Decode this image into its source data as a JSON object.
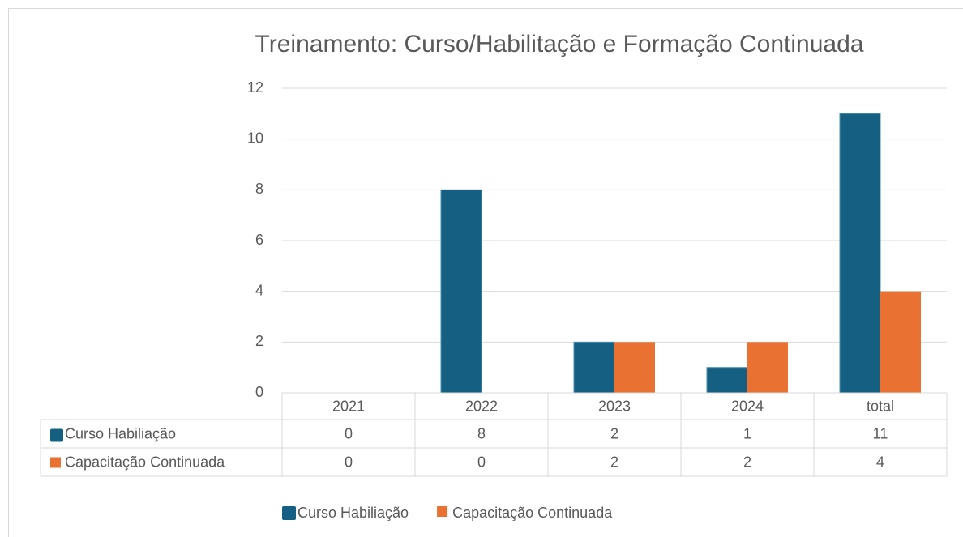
{
  "chart_data": {
    "type": "bar",
    "title": "Treinamento: Curso/Habilitação e Formação Continuada",
    "categories": [
      "2021",
      "2022",
      "2023",
      "2024",
      "total"
    ],
    "series": [
      {
        "name": "Curso Habiliação",
        "color": "#156082",
        "values": [
          0,
          8,
          2,
          1,
          11
        ]
      },
      {
        "name": "Capacitação Continuada",
        "color": "#e97132",
        "values": [
          0,
          0,
          2,
          2,
          4
        ]
      }
    ],
    "ylim": [
      0,
      12
    ],
    "yticks": [
      0,
      2,
      4,
      6,
      8,
      10,
      12
    ],
    "grid": true,
    "data_table": true,
    "legend": "bottom"
  }
}
